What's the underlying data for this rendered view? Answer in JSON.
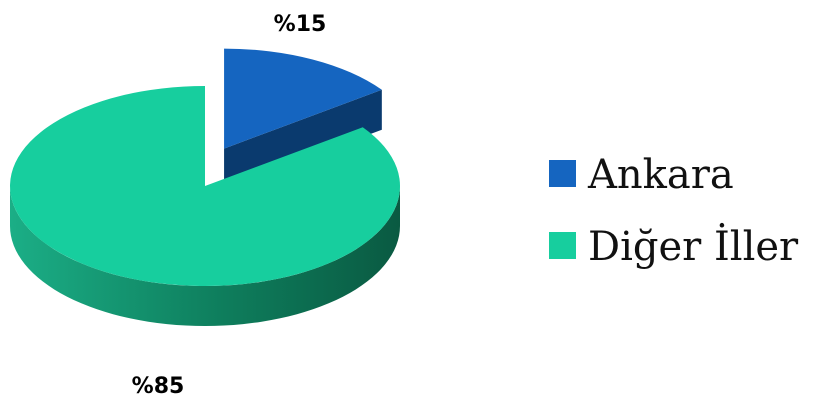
{
  "chart_data": {
    "type": "pie",
    "title": "",
    "categories": [
      "Ankara",
      "Diğer İller"
    ],
    "values": [
      15,
      85
    ],
    "data_labels": [
      "%15",
      "%85"
    ],
    "colors": [
      "#1565C0",
      "#17CE9E"
    ],
    "side_colors": [
      "#0A3A6E",
      "#0F7A5A"
    ],
    "exploded": [
      "Ankara"
    ],
    "legend_position": "right",
    "three_d": true
  }
}
